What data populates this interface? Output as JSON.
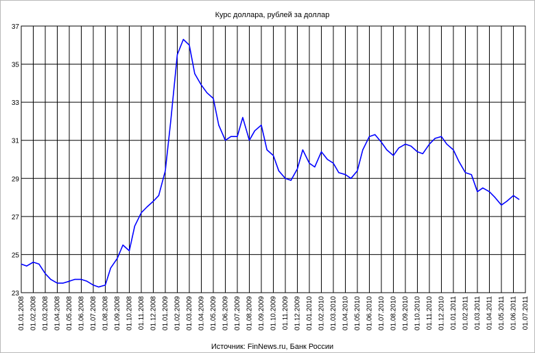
{
  "chart_data": {
    "type": "line",
    "title": "Курс доллара, рублей за доллар",
    "source_note": "Источник: FinNews.ru, Банк России",
    "xlabel": "",
    "ylabel": "",
    "ylim": [
      23,
      37
    ],
    "yticks": [
      23,
      25,
      27,
      29,
      31,
      33,
      35,
      37
    ],
    "xticks": [
      "01.01.2008",
      "01.02.2008",
      "01.03.2008",
      "01.04.2008",
      "01.05.2008",
      "01.06.2008",
      "01.07.2008",
      "01.08.2008",
      "01.09.2008",
      "01.10.2008",
      "01.11.2008",
      "01.12.2008",
      "01.01.2009",
      "01.02.2009",
      "01.03.2009",
      "01.04.2009",
      "01.05.2009",
      "01.06.2009",
      "01.07.2009",
      "01.08.2009",
      "01.09.2009",
      "01.10.2009",
      "01.11.2009",
      "01.12.2009",
      "01.01.2010",
      "01.02.2010",
      "01.03.2010",
      "01.04.2010",
      "01.05.2010",
      "01.06.2010",
      "01.07.2010",
      "01.08.2010",
      "01.09.2010",
      "01.10.2010",
      "01.11.2010",
      "01.12.2010",
      "01.01.2011",
      "01.02.2011",
      "01.03.2011",
      "01.04.2011",
      "01.05.2011",
      "01.06.2011",
      "01.07.2011"
    ],
    "grid": true,
    "legend": "none",
    "line_color": "#0000ff",
    "series": [
      {
        "x": [
          "01.01.2008",
          "15.01.2008",
          "01.02.2008",
          "15.02.2008",
          "01.03.2008",
          "15.03.2008",
          "01.04.2008",
          "15.04.2008",
          "01.05.2008",
          "15.05.2008",
          "01.06.2008",
          "15.06.2008",
          "01.07.2008",
          "15.07.2008",
          "01.08.2008",
          "15.08.2008",
          "01.09.2008",
          "15.09.2008",
          "01.10.2008",
          "15.10.2008",
          "01.11.2008",
          "15.11.2008",
          "01.12.2008",
          "15.12.2008",
          "01.01.2009",
          "15.01.2009",
          "01.02.2009",
          "15.02.2009",
          "01.03.2009",
          "15.03.2009",
          "01.04.2009",
          "15.04.2009",
          "01.05.2009",
          "15.05.2009",
          "01.06.2009",
          "15.06.2009",
          "01.07.2009",
          "15.07.2009",
          "01.08.2009",
          "15.08.2009",
          "01.09.2009",
          "15.09.2009",
          "01.10.2009",
          "15.10.2009",
          "01.11.2009",
          "15.11.2009",
          "01.12.2009",
          "15.12.2009",
          "01.01.2010",
          "15.01.2010",
          "01.02.2010",
          "15.02.2010",
          "01.03.2010",
          "15.03.2010",
          "01.04.2010",
          "15.04.2010",
          "01.05.2010",
          "15.05.2010",
          "01.06.2010",
          "15.06.2010",
          "01.07.2010",
          "15.07.2010",
          "01.08.2010",
          "15.08.2010",
          "01.09.2010",
          "15.09.2010",
          "01.10.2010",
          "15.10.2010",
          "01.11.2010",
          "15.11.2010",
          "01.12.2010",
          "15.12.2010",
          "01.01.2011",
          "15.01.2011",
          "01.02.2011",
          "15.02.2011",
          "01.03.2011",
          "15.03.2011",
          "01.04.2011",
          "15.04.2011",
          "01.05.2011",
          "15.05.2011",
          "01.06.2011",
          "15.06.2011"
        ],
        "values": [
          24.5,
          24.4,
          24.6,
          24.5,
          24.0,
          23.7,
          23.5,
          23.5,
          23.6,
          23.7,
          23.7,
          23.6,
          23.4,
          23.3,
          23.4,
          24.3,
          24.8,
          25.5,
          25.2,
          26.5,
          27.2,
          27.5,
          27.8,
          28.1,
          29.4,
          32.0,
          35.5,
          36.3,
          36.0,
          34.5,
          33.9,
          33.5,
          33.2,
          31.8,
          31.0,
          31.2,
          31.2,
          32.2,
          31.0,
          31.5,
          31.8,
          30.5,
          30.2,
          29.4,
          29.0,
          28.9,
          29.5,
          30.5,
          29.8,
          29.6,
          30.4,
          30.0,
          29.8,
          29.3,
          29.2,
          29.0,
          29.4,
          30.5,
          31.2,
          31.3,
          30.9,
          30.5,
          30.2,
          30.6,
          30.8,
          30.7,
          30.4,
          30.3,
          30.8,
          31.1,
          31.2,
          30.8,
          30.5,
          29.9,
          29.3,
          29.2,
          28.3,
          28.5,
          28.3,
          28.0,
          27.6,
          27.8,
          28.1,
          27.9
        ]
      }
    ]
  }
}
